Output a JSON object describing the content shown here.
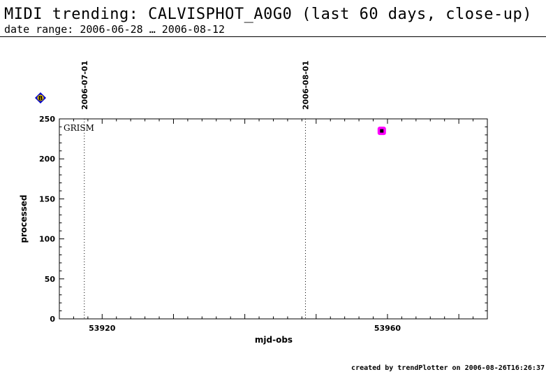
{
  "header": {
    "title": "MIDI trending: CALVISPHOT_A0G0 (last 60 days, close-up)",
    "subtitle": "date range: 2006-06-28 … 2006-08-12"
  },
  "footer": {
    "text": "created by trendPlotter on 2006-08-26T16:26:37"
  },
  "chart_data": {
    "type": "scatter",
    "title": "",
    "xlabel": "mjd-obs",
    "ylabel": "processed",
    "panel_label": "GRISM",
    "xlim": [
      53914,
      53974
    ],
    "ylim": [
      0,
      250
    ],
    "x_ticks": [
      53920,
      53960
    ],
    "y_ticks": [
      0,
      50,
      100,
      150,
      200,
      250
    ],
    "grid": false,
    "date_markers": [
      {
        "label": "2006-07-01",
        "x": 53917.5
      },
      {
        "label": "2006-08-01",
        "x": 53948.5
      }
    ],
    "legend_marker": {
      "symbol": "B",
      "color": "#0000cc",
      "position": "top-left"
    },
    "series": [
      {
        "points": [
          {
            "x": 53959.2,
            "y": 235
          }
        ],
        "color": "#ff00ff"
      }
    ]
  }
}
